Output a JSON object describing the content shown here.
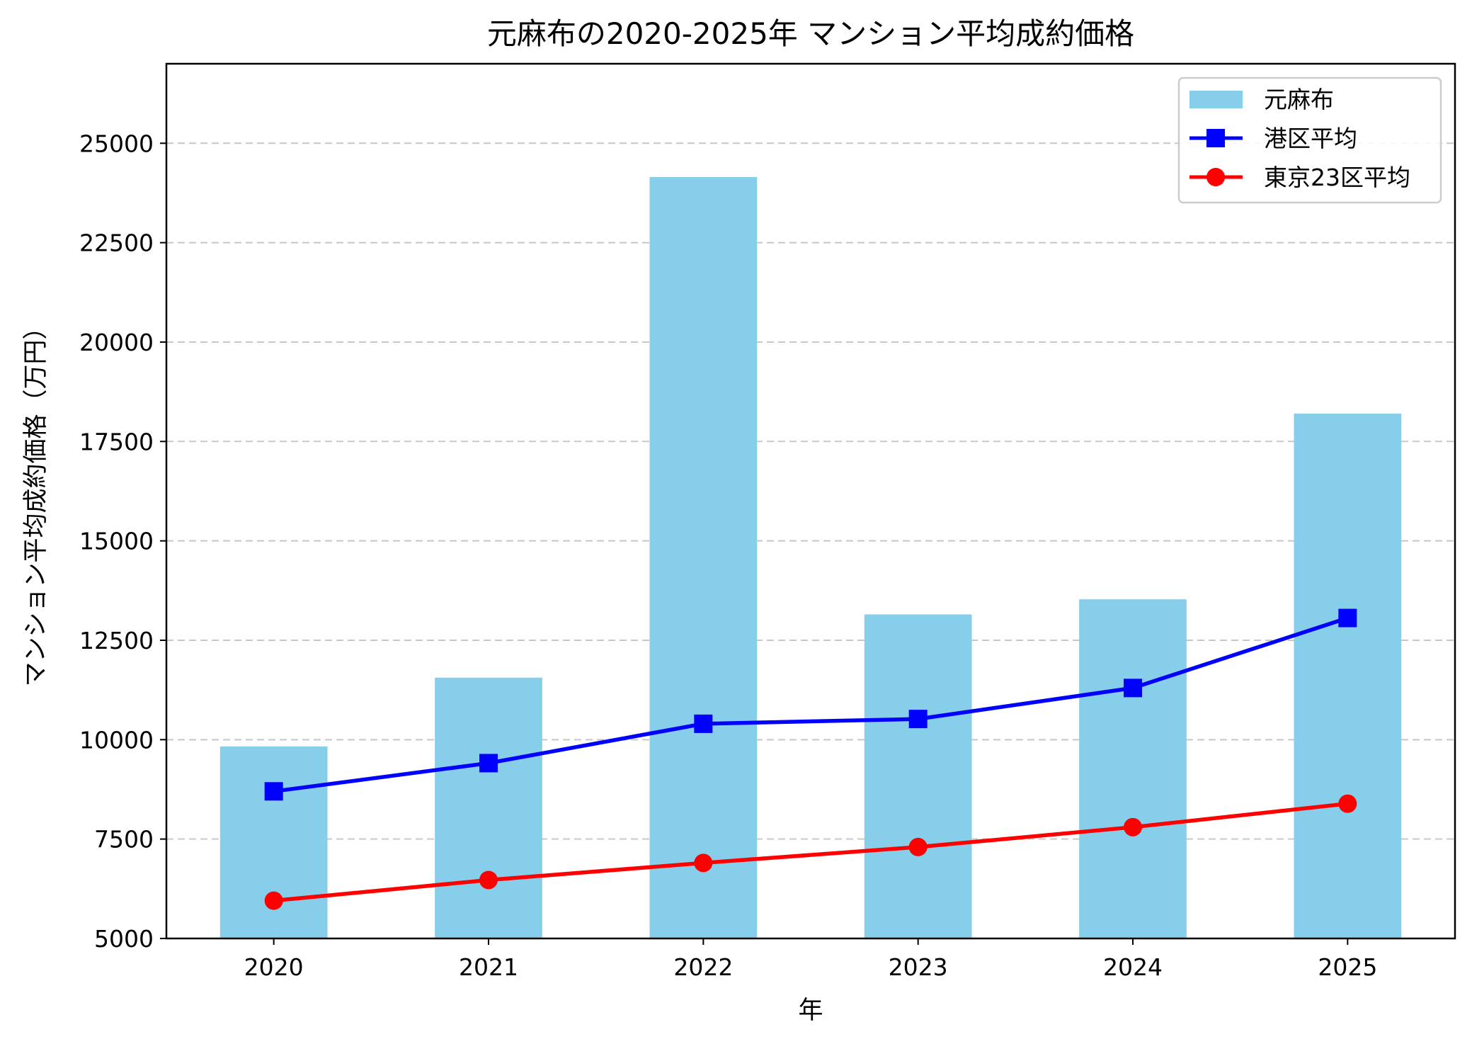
{
  "chart_data": {
    "type": "bar+line",
    "title": "元麻布の2020-2025年 マンション平均成約価格",
    "xlabel": "年",
    "ylabel": "マンション平均成約価格（万円）",
    "categories": [
      "2020",
      "2021",
      "2022",
      "2023",
      "2024",
      "2025"
    ],
    "ylim": [
      5000,
      27000
    ],
    "yticks": [
      5000,
      7500,
      10000,
      12500,
      15000,
      17500,
      20000,
      22500,
      25000
    ],
    "grid": "y, dashed",
    "legend_position": "top-right",
    "series": [
      {
        "name": "元麻布",
        "kind": "bar",
        "color": "#87CEEB",
        "values": [
          9830,
          11560,
          24150,
          13150,
          13530,
          18200
        ]
      },
      {
        "name": "港区平均",
        "kind": "line",
        "marker": "square",
        "color": "#0000FF",
        "values": [
          8700,
          9410,
          10400,
          10520,
          11300,
          13060
        ]
      },
      {
        "name": "東京23区平均",
        "kind": "line",
        "marker": "circle",
        "color": "#FF0000",
        "values": [
          5950,
          6470,
          6900,
          7300,
          7800,
          8390
        ]
      }
    ]
  }
}
